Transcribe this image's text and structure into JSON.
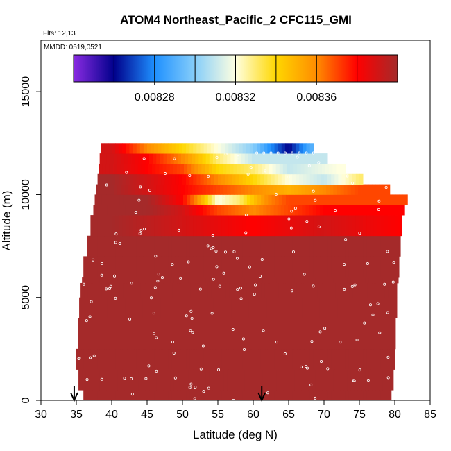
{
  "chart_data": {
    "type": "heatmap",
    "title": "ATOM4 Northeast_Pacific_2 CFC115_GMI",
    "flights_label": "Flts: 12,13",
    "dates_label": "MMDD: 0519,0521",
    "xlabel": "Latitude (deg N)",
    "ylabel": "Altitude (m)",
    "xlim": [
      30,
      85
    ],
    "ylim": [
      0,
      17500
    ],
    "x_ticks": [
      "30",
      "35",
      "40",
      "45",
      "50",
      "55",
      "60",
      "65",
      "70",
      "75",
      "80",
      "85"
    ],
    "y_ticks": [
      "0",
      "5000",
      "10000",
      "15000"
    ],
    "colorbar": {
      "min": 0.00824,
      "max": 0.0084,
      "tick_labels": [
        "0.00828",
        "0.00832",
        "0.00836"
      ],
      "tick_values": [
        0.00828,
        0.00832,
        0.00836
      ],
      "colors": [
        "#8a2be2",
        "#00008b",
        "#1e90ff",
        "#87cefa",
        "#ffffe0",
        "#ffd700",
        "#ff8c00",
        "#ff0000",
        "#a52a2a"
      ]
    },
    "curtain_rows": [
      {
        "alt_bottom": 0,
        "alt_top": 500,
        "lat_min": 36.0,
        "lat_max": 79.5
      },
      {
        "alt_bottom": 500,
        "alt_top": 1500,
        "lat_min": 35.3,
        "lat_max": 79.8
      },
      {
        "alt_bottom": 1500,
        "alt_top": 2500,
        "lat_min": 35.0,
        "lat_max": 80.0
      },
      {
        "alt_bottom": 2500,
        "alt_top": 4000,
        "lat_min": 35.2,
        "lat_max": 80.1
      },
      {
        "alt_bottom": 4000,
        "alt_top": 5000,
        "lat_min": 35.4,
        "lat_max": 80.3
      },
      {
        "alt_bottom": 5000,
        "alt_top": 5700,
        "lat_min": 35.6,
        "lat_max": 80.3
      },
      {
        "alt_bottom": 5700,
        "alt_top": 6000,
        "lat_min": 35.8,
        "lat_max": 80.5
      },
      {
        "alt_bottom": 6000,
        "alt_top": 7000,
        "lat_min": 36.0,
        "lat_max": 80.6
      },
      {
        "alt_bottom": 7000,
        "alt_top": 8000,
        "lat_min": 36.5,
        "lat_max": 80.8
      },
      {
        "alt_bottom": 8000,
        "alt_top": 9000,
        "lat_min": 37.0,
        "lat_max": 81.0
      },
      {
        "alt_bottom": 9000,
        "alt_top": 9500,
        "lat_min": 37.4,
        "lat_max": 81.3
      },
      {
        "alt_bottom": 9500,
        "alt_top": 10000,
        "lat_min": 37.6,
        "lat_max": 81.8
      },
      {
        "alt_bottom": 10000,
        "alt_top": 10500,
        "lat_min": 37.8,
        "lat_max": 79.3
      },
      {
        "alt_bottom": 10500,
        "alt_top": 11000,
        "lat_min": 38.0,
        "lat_max": 75.5
      },
      {
        "alt_bottom": 11000,
        "alt_top": 11500,
        "lat_min": 38.2,
        "lat_max": 73.0
      },
      {
        "alt_bottom": 11500,
        "alt_top": 12000,
        "lat_min": 38.3,
        "lat_max": 70.5
      },
      {
        "alt_bottom": 12000,
        "alt_top": 12500,
        "lat_min": 38.5,
        "lat_max": 68.5
      }
    ],
    "upper_band_values": [
      {
        "alt": 12250,
        "lat": [
          40,
          45,
          50,
          55,
          60,
          65,
          68
        ],
        "value": [
          0.00839,
          0.00836,
          0.00834,
          0.00832,
          0.0083,
          0.00826,
          0.00829
        ]
      },
      {
        "alt": 11750,
        "lat": [
          40,
          45,
          50,
          55,
          60,
          65,
          70
        ],
        "value": [
          0.00839,
          0.00838,
          0.00836,
          0.00833,
          0.00831,
          0.00831,
          0.00831
        ]
      },
      {
        "alt": 11250,
        "lat": [
          40,
          45,
          50,
          55,
          60,
          65,
          72
        ],
        "value": [
          0.00839,
          0.00838,
          0.00837,
          0.00834,
          0.00833,
          0.00831,
          0.00832
        ]
      },
      {
        "alt": 10750,
        "lat": [
          40,
          45,
          50,
          55,
          60,
          65,
          70,
          75
        ],
        "value": [
          0.0084,
          0.00839,
          0.00838,
          0.00836,
          0.00834,
          0.00832,
          0.00831,
          0.00833
        ]
      },
      {
        "alt": 10250,
        "lat": [
          40,
          45,
          50,
          55,
          60,
          65,
          70,
          75,
          79
        ],
        "value": [
          0.0084,
          0.00839,
          0.00838,
          0.00837,
          0.00836,
          0.00835,
          0.00836,
          0.00837,
          0.00837
        ]
      },
      {
        "alt": 9750,
        "lat": [
          40,
          45,
          50,
          52,
          55,
          58,
          62,
          65,
          70,
          75,
          80
        ],
        "value": [
          0.0084,
          0.0084,
          0.00838,
          0.00836,
          0.00832,
          0.00833,
          0.00836,
          0.00837,
          0.00837,
          0.00837,
          0.00837
        ]
      },
      {
        "alt": 9250,
        "lat": [
          40,
          45,
          50,
          55,
          60,
          65,
          70,
          75,
          81
        ],
        "value": [
          0.0084,
          0.0084,
          0.00839,
          0.00837,
          0.00836,
          0.00837,
          0.00838,
          0.00838,
          0.00838
        ]
      },
      {
        "alt": 8750,
        "lat": [
          40,
          50,
          60,
          70,
          81
        ],
        "value": [
          0.0084,
          0.00839,
          0.00838,
          0.00839,
          0.00838
        ]
      }
    ],
    "markers": [
      {
        "lat": 34.7,
        "label": "arrow"
      },
      {
        "lat": 61.2,
        "label": "arrow"
      }
    ]
  }
}
